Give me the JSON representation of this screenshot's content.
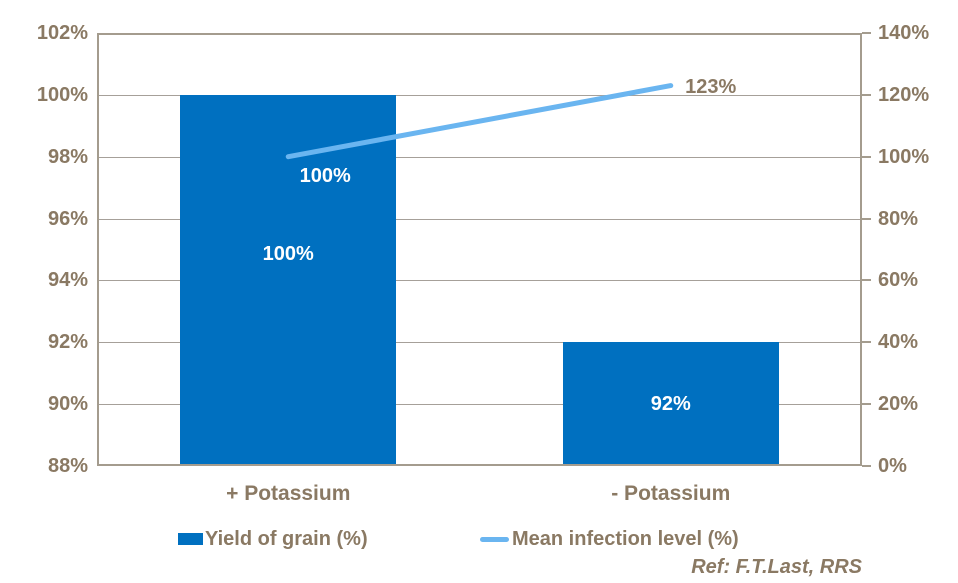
{
  "chart_data": {
    "type": "combo",
    "categories": [
      "+ Potassium",
      "- Potassium"
    ],
    "series": [
      {
        "name": "Yield of grain (%)",
        "type": "bar",
        "axis": "left",
        "color": "#0070c0",
        "values": [
          100,
          92
        ],
        "data_labels": [
          {
            "text": "100%",
            "color": "#ffffff"
          },
          {
            "text": "92%",
            "color": "#ffffff"
          }
        ]
      },
      {
        "name": "Mean infection level (%)",
        "type": "line",
        "axis": "right",
        "color": "#6ab5f0",
        "values": [
          100,
          123
        ],
        "data_labels": [
          {
            "text": "100%",
            "color": "#ffffff"
          },
          {
            "text": "123%",
            "color": "#8a7963"
          }
        ]
      }
    ],
    "left_axis": {
      "min": 88,
      "max": 102,
      "tick_values": [
        102,
        100,
        98,
        96,
        94,
        92,
        90,
        88
      ],
      "ticks": [
        "102%",
        "100%",
        "98%",
        "96%",
        "94%",
        "92%",
        "90%",
        "88%"
      ]
    },
    "right_axis": {
      "min": 0,
      "max": 140,
      "tick_values": [
        140,
        120,
        100,
        80,
        60,
        40,
        20,
        0
      ],
      "ticks": [
        "140%",
        "120%",
        "100%",
        "80%",
        "60%",
        "40%",
        "20%",
        "0%"
      ]
    },
    "grid": true,
    "legend_position": "bottom",
    "annotation": "Ref: F.T.Last, RRS"
  },
  "colors": {
    "bar": "#0070c0",
    "line": "#6ab5f0",
    "axis_text": "#8a7963",
    "grid": "#a6a099",
    "border": "#a49c8e",
    "background": "#ffffff",
    "bar_label": "#ffffff"
  }
}
